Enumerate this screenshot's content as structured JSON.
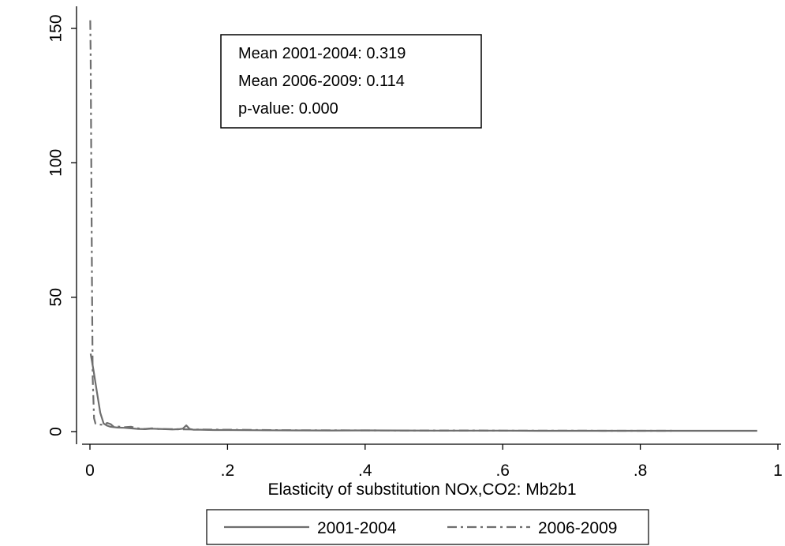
{
  "chart_data": {
    "type": "line",
    "title": "",
    "xlabel": "Elasticity of substitution NOx,CO2: Mb2b1",
    "ylabel": "",
    "xlim": [
      0,
      1
    ],
    "ylim": [
      0,
      150
    ],
    "x_ticks": [
      {
        "value": 0,
        "label": "0"
      },
      {
        "value": 0.2,
        "label": ".2"
      },
      {
        "value": 0.4,
        "label": ".4"
      },
      {
        "value": 0.6,
        "label": ".6"
      },
      {
        "value": 0.8,
        "label": ".8"
      },
      {
        "value": 1,
        "label": "1"
      }
    ],
    "y_ticks": [
      {
        "value": 0,
        "label": "0"
      },
      {
        "value": 50,
        "label": "50"
      },
      {
        "value": 100,
        "label": "100"
      },
      {
        "value": 150,
        "label": "150"
      }
    ],
    "grid": false,
    "legend_position": "bottom",
    "annotations": [
      "Mean 2001-2004: 0.319",
      "Mean 2006-2009: 0.114",
      "p-value: 0.000"
    ],
    "series": [
      {
        "name": "2001-2004",
        "color": "#6e6e6e",
        "style": "solid",
        "x": [
          0.001,
          0.005,
          0.01,
          0.015,
          0.02,
          0.025,
          0.03,
          0.04,
          0.05,
          0.06,
          0.07,
          0.08,
          0.09,
          0.1,
          0.11,
          0.12,
          0.13,
          0.135,
          0.14,
          0.145,
          0.15,
          0.16,
          0.18,
          0.2,
          0.25,
          0.3,
          0.35,
          0.4,
          0.45,
          0.5,
          0.55,
          0.6,
          0.65,
          0.7,
          0.75,
          0.8,
          0.85,
          0.9,
          0.95,
          0.97
        ],
        "y": [
          29,
          23,
          15,
          7,
          3,
          2.2,
          1.8,
          1.5,
          1.4,
          1.2,
          1.0,
          0.9,
          1.1,
          1.0,
          0.9,
          0.8,
          0.9,
          1.1,
          2.3,
          1.0,
          0.7,
          0.7,
          0.6,
          0.6,
          0.5,
          0.45,
          0.4,
          0.45,
          0.4,
          0.35,
          0.35,
          0.35,
          0.3,
          0.3,
          0.3,
          0.3,
          0.3,
          0.3,
          0.3,
          0.3
        ]
      },
      {
        "name": "2006-2009",
        "color": "#6e6e6e",
        "style": "dash-dot",
        "x": [
          0.0005,
          0.001,
          0.002,
          0.003,
          0.004,
          0.006,
          0.008,
          0.01,
          0.015,
          0.02,
          0.025,
          0.03,
          0.035,
          0.04,
          0.05,
          0.06,
          0.07,
          0.08,
          0.09,
          0.1,
          0.12,
          0.15,
          0.2,
          0.25,
          0.3,
          0.35,
          0.4,
          0.45,
          0.5,
          0.55,
          0.6,
          0.65,
          0.7,
          0.75,
          0.8,
          0.85
        ],
        "y": [
          153,
          140,
          100,
          55,
          20,
          5,
          3,
          2.8,
          2.6,
          2.5,
          3.2,
          2.8,
          1.7,
          1.9,
          1.6,
          1.8,
          1.2,
          1.0,
          1.2,
          1.0,
          0.9,
          0.8,
          0.7,
          0.6,
          0.5,
          0.5,
          0.45,
          0.4,
          0.4,
          0.4,
          0.35,
          0.35,
          0.35,
          0.3,
          0.3,
          0.3
        ]
      }
    ]
  }
}
